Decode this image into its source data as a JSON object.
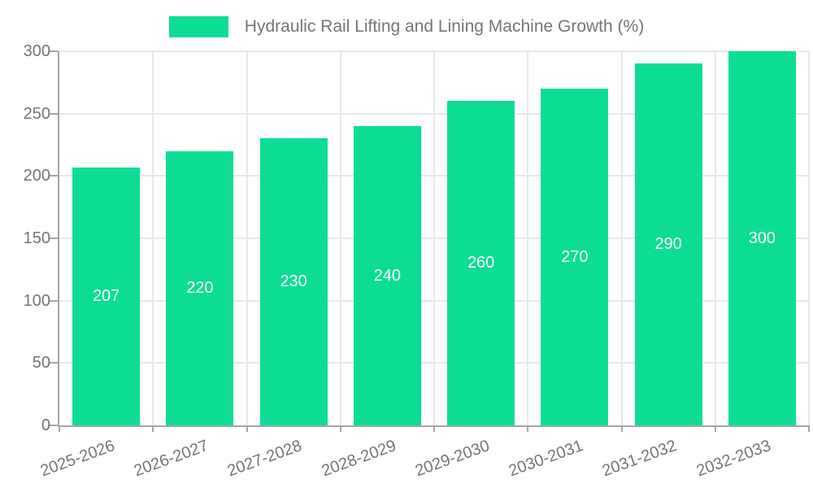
{
  "legend": {
    "label": "Hydraulic Rail Lifting and Lining Machine Growth (%)"
  },
  "chart_data": {
    "type": "bar",
    "title": "Hydraulic Rail Lifting and Lining Machine Growth (%)",
    "series_name": "Hydraulic Rail Lifting and Lining Machine Growth (%)",
    "categories": [
      "2025-2026",
      "2026-2027",
      "2027-2028",
      "2028-2029",
      "2029-2030",
      "2030-2031",
      "2031-2032",
      "2032-2033"
    ],
    "values": [
      207,
      220,
      230,
      240,
      260,
      270,
      290,
      300
    ],
    "value_labels": [
      "207",
      "220",
      "230",
      "240",
      "260",
      "270",
      "290",
      "300"
    ],
    "xlabel": "",
    "ylabel": "",
    "ylim": [
      0,
      300
    ],
    "y_ticks": [
      0,
      50,
      100,
      150,
      200,
      250,
      300
    ],
    "grid": true,
    "legend_position": "top",
    "x_tick_rotation_deg": -20,
    "colors": {
      "bar": "#0ddd93",
      "value_label": "#ffffff",
      "axis_line": "#a6a6a6",
      "grid_line": "#e8e8e8",
      "tick_label": "#757575"
    }
  }
}
